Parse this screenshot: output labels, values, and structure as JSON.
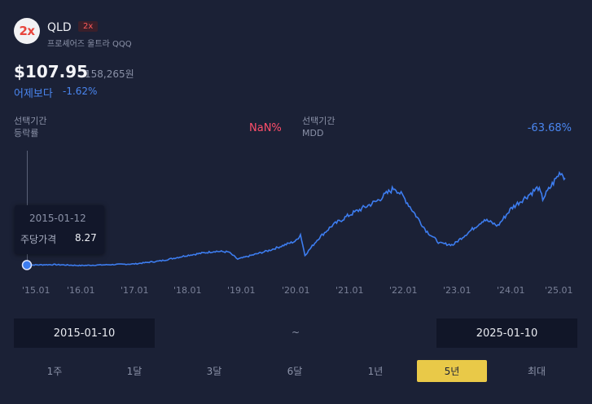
{
  "header": {
    "logo_text": "2x",
    "ticker": "QLD",
    "leverage_badge": "2x",
    "fund_name": "프로셰어즈 울트라 QQQ"
  },
  "price": {
    "usd": "$107.95",
    "krw": "158,265원",
    "change_label": "어제보다",
    "change_value": "-1.62%"
  },
  "stats": {
    "period_return_label_line1": "선택기간",
    "period_return_label_line2": "등락률",
    "period_return_value": "NaN%",
    "mdd_label_line1": "선택기간",
    "mdd_label_line2": "MDD",
    "mdd_value": "-63.68%"
  },
  "tooltip": {
    "date": "2015-01-12",
    "label": "주당가격",
    "value": "8.27"
  },
  "chart_data": {
    "type": "line",
    "xlabel": "",
    "ylabel": "",
    "tick_labels": [
      "'15.01",
      "'16.01",
      "'17.01",
      "'18.01",
      "'19.01",
      "'20.01",
      "'21.01",
      "'22.01",
      "'23.01",
      "'24.01",
      "'25.01"
    ],
    "x": [
      "2015-01",
      "2015-07",
      "2016-01",
      "2016-07",
      "2017-01",
      "2017-07",
      "2018-01",
      "2018-07",
      "2018-10",
      "2018-12",
      "2019-07",
      "2020-01",
      "2020-02",
      "2020-03",
      "2020-06",
      "2020-09",
      "2021-01",
      "2021-07",
      "2021-11",
      "2022-01",
      "2022-06",
      "2022-09",
      "2022-12",
      "2023-07",
      "2023-10",
      "2024-01",
      "2024-07",
      "2024-08",
      "2024-12",
      "2025-01"
    ],
    "series": [
      {
        "values": [
          8.3,
          8.6,
          8.0,
          8.5,
          9.0,
          11.0,
          14.5,
          17.0,
          16.5,
          12.0,
          17.5,
          23.5,
          27.5,
          14.5,
          25.0,
          33.0,
          40.0,
          48.5,
          57.0,
          51.0,
          30.0,
          22.0,
          21.0,
          37.0,
          33.0,
          44.0,
          57.0,
          50.0,
          67.0,
          63.0
        ]
      }
    ],
    "color": "#3d7df0",
    "grid": false
  },
  "x_ticks": [
    "'15.01",
    "'16.01",
    "'17.01",
    "'18.01",
    "'19.01",
    "'20.01",
    "'21.01",
    "'22.01",
    "'23.01",
    "'24.01",
    "'25.01"
  ],
  "range": {
    "start": "2015-01-10",
    "separator": "~",
    "end": "2025-01-10"
  },
  "periods": [
    "1주",
    "1달",
    "3달",
    "6달",
    "1년",
    "5년",
    "최대"
  ],
  "active_period": "5년",
  "colors": {
    "background": "#1b2136",
    "line": "#3d7df0",
    "accent": "#e9c948",
    "negative": "#4a86f0",
    "nan": "#ff4e6a"
  }
}
